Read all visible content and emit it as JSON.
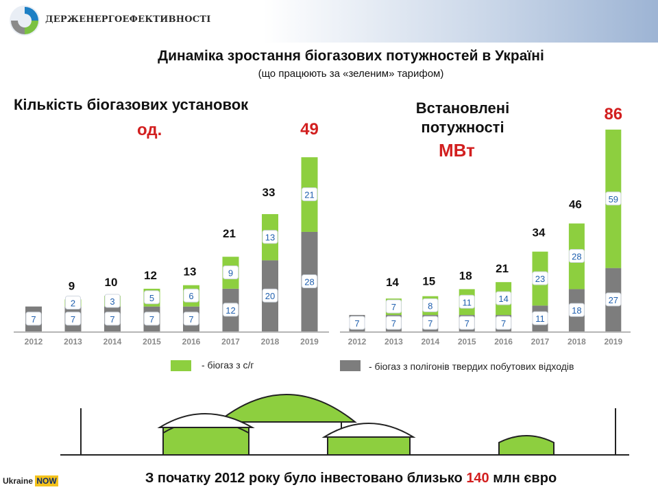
{
  "header": {
    "org_name": "ДЕРЖЕНЕРГОЕФЕКТИВНОСТІ"
  },
  "title": "Динаміка зростання біогазових потужностей в Україні",
  "subtitle": "(що працюють за «зеленим» тарифом)",
  "left_chart_label": "Кількість біогазових установок",
  "left_unit": "од.",
  "right_chart_label": [
    "Встановлені",
    "потужності"
  ],
  "right_unit": "МВт",
  "legend": {
    "green_label": "- біогаз з с/г",
    "gray_label": "- біогаз з полігонів твердих побутових відходів"
  },
  "bottom": {
    "prefix": "З початку ",
    "year": "2012",
    "middle": " року було інвестовано близько ",
    "amount": "140",
    "suffix": " млн євро"
  },
  "badge": {
    "text": "Ukraine",
    "now": "NOW"
  },
  "colors": {
    "green": "#8dcf3f",
    "gray": "#7d7d7d",
    "red": "#d21f1f",
    "label_blue": "#1f5fae"
  },
  "chart_data": [
    {
      "type": "bar",
      "stacked": true,
      "title": "Кількість біогазових установок",
      "unit": "од.",
      "categories": [
        "2012",
        "2013",
        "2014",
        "2015",
        "2016",
        "2017",
        "2018",
        "2019"
      ],
      "series": [
        {
          "name": "- біогаз з полігонів твердих побутових відходів",
          "values": [
            7,
            7,
            7,
            7,
            7,
            12,
            20,
            28
          ]
        },
        {
          "name": "- біогаз з с/г",
          "values": [
            null,
            2,
            3,
            5,
            6,
            9,
            13,
            21
          ]
        }
      ],
      "totals": [
        null,
        9,
        10,
        12,
        13,
        21,
        33,
        49
      ]
    },
    {
      "type": "bar",
      "stacked": true,
      "title": "Встановлені потужності",
      "unit": "МВт",
      "categories": [
        "2012",
        "2013",
        "2014",
        "2015",
        "2016",
        "2017",
        "2018",
        "2019"
      ],
      "series": [
        {
          "name": "- біогаз з полігонів твердих побутових відходів",
          "values": [
            7,
            7,
            7,
            7,
            7,
            11,
            18,
            27
          ]
        },
        {
          "name": "- біогаз з с/г",
          "values": [
            null,
            7,
            8,
            11,
            14,
            23,
            28,
            59
          ]
        }
      ],
      "totals": [
        null,
        14,
        15,
        18,
        21,
        34,
        46,
        86
      ]
    }
  ]
}
